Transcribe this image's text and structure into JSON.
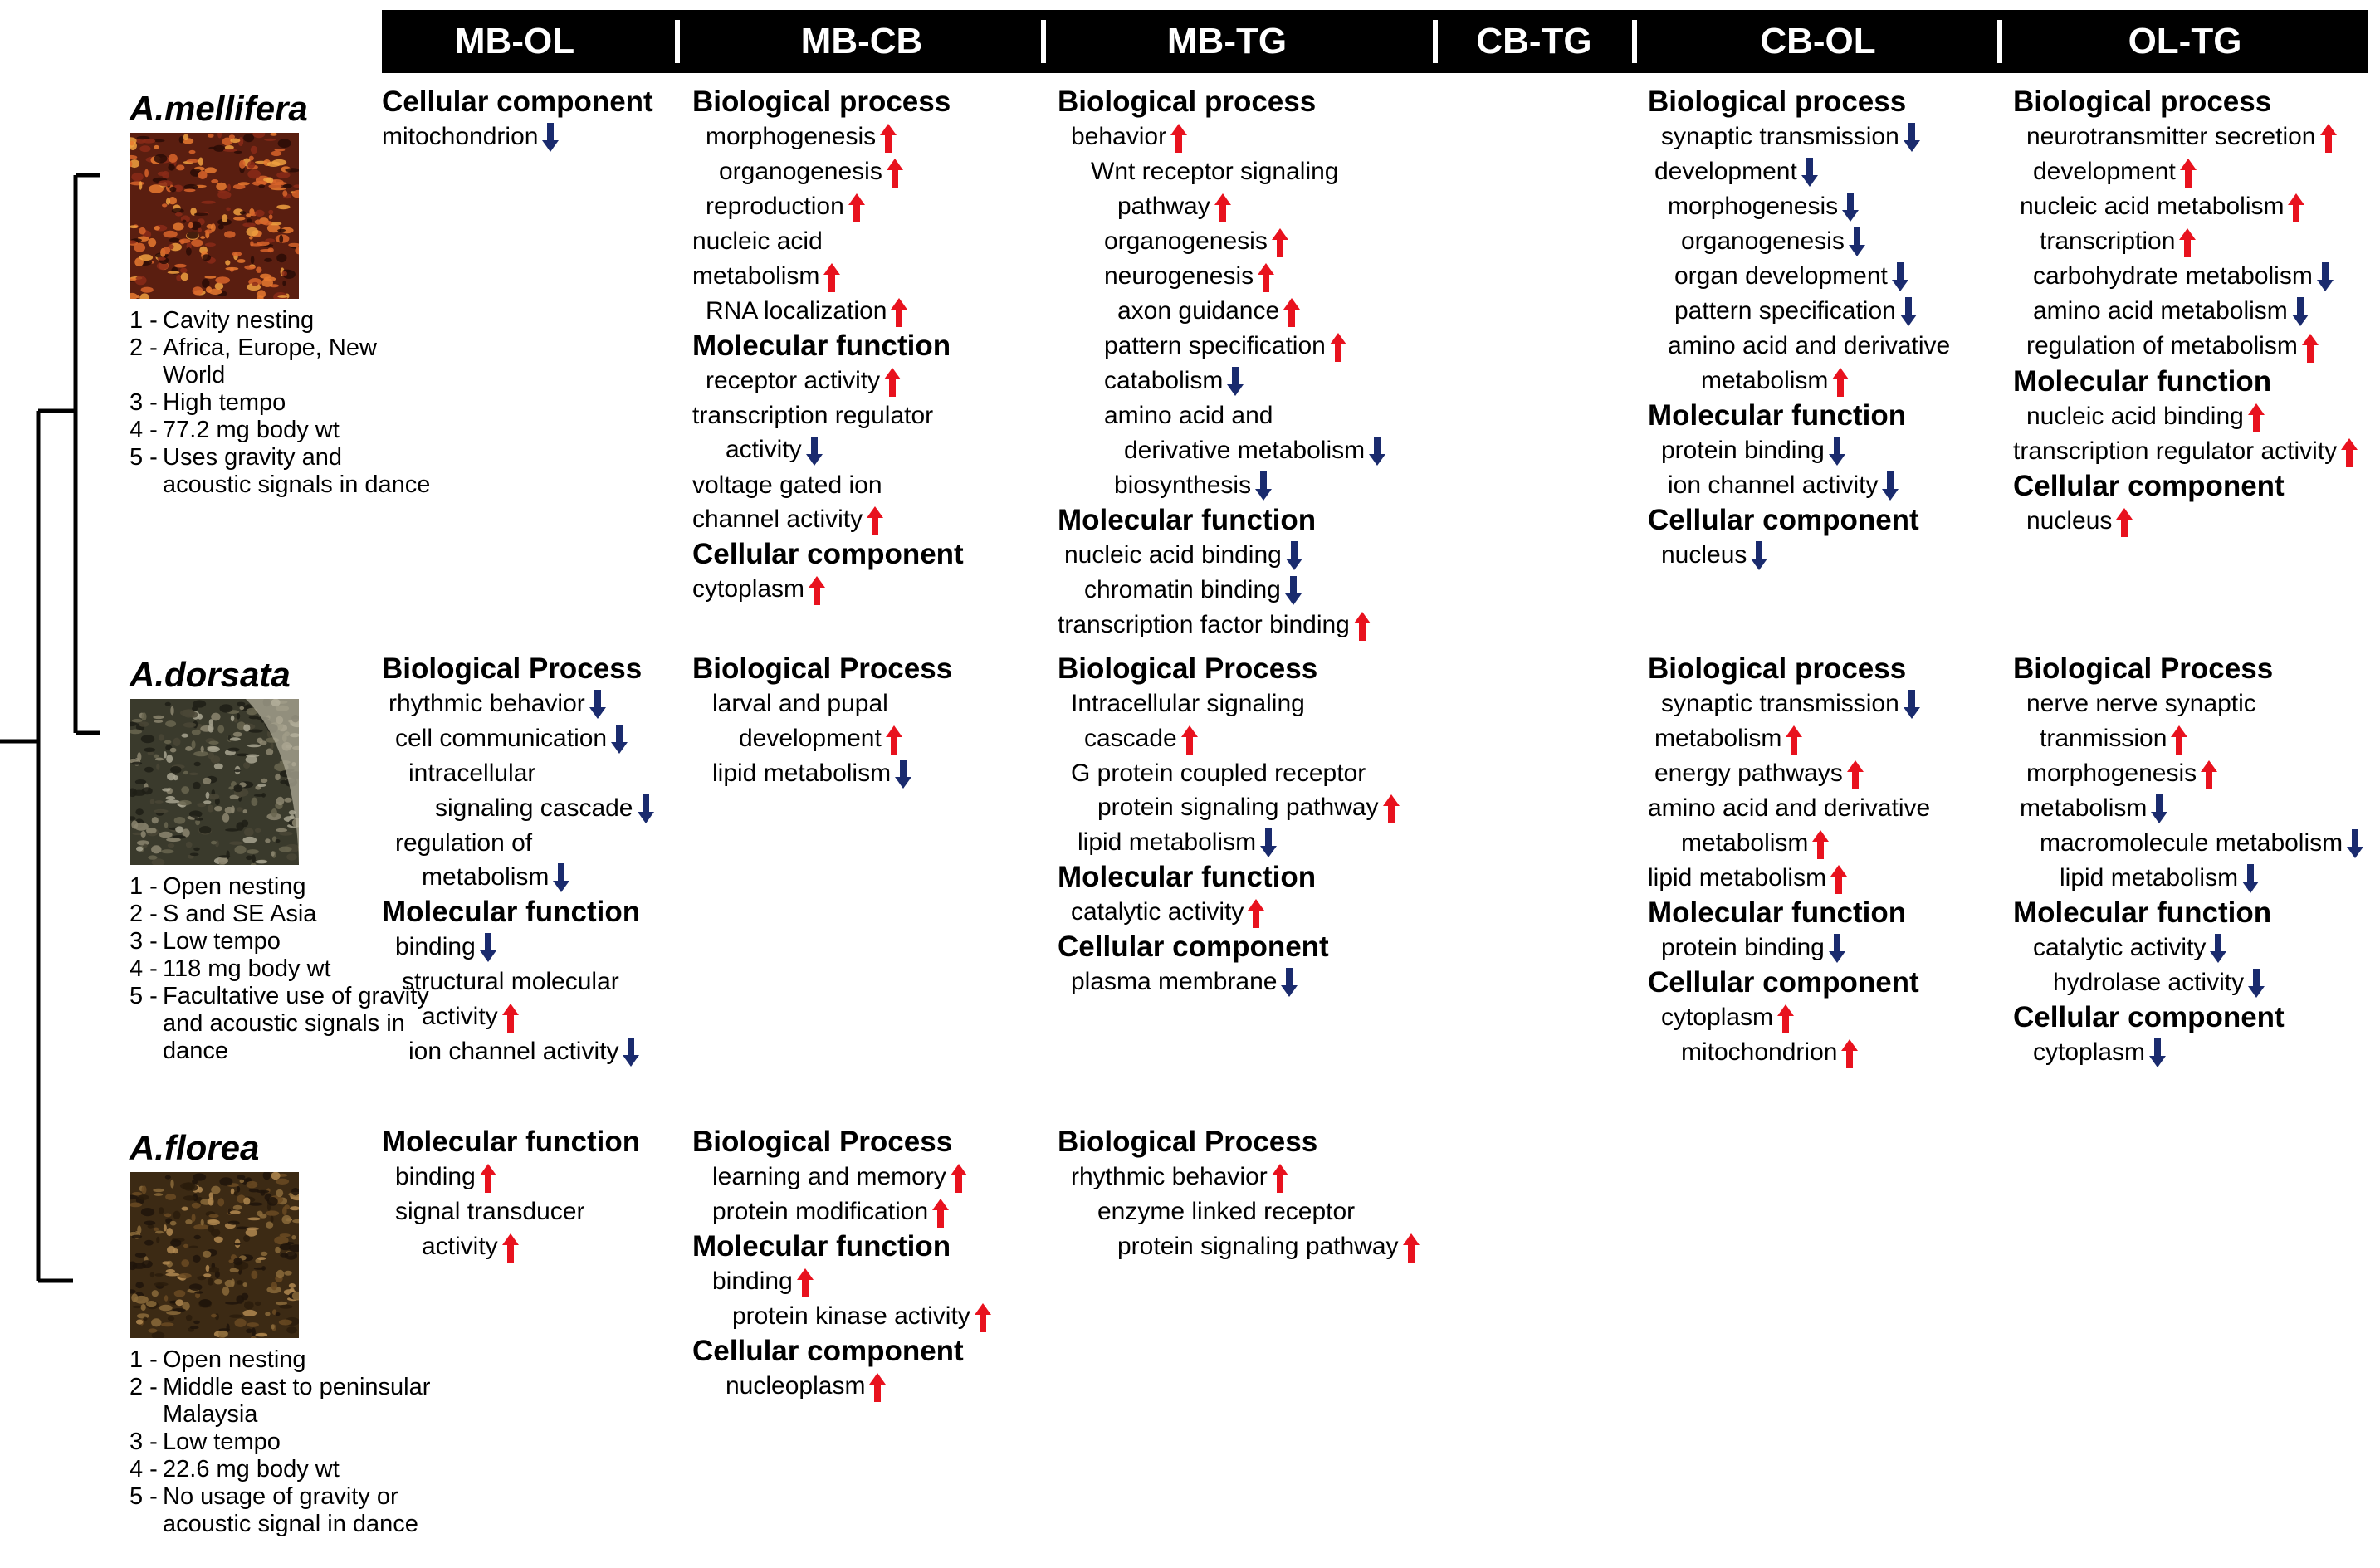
{
  "columns": [
    "MB-OL",
    "MB-CB",
    "MB-TG",
    "CB-TG",
    "CB-OL",
    "OL-TG"
  ],
  "colors": {
    "up": "#e8121e",
    "down": "#1a2b6e",
    "header_bg": "#000000"
  },
  "species": [
    {
      "name": "A.mellifera",
      "photo": "honeybee-swarm-photo",
      "traits": [
        {
          "num": "1 -",
          "text": "Cavity nesting"
        },
        {
          "num": "2 -",
          "text": "Africa, Europe, New World"
        },
        {
          "num": "3 -",
          "text": "High tempo"
        },
        {
          "num": "4 -",
          "text": "77.2 mg body wt"
        },
        {
          "num": "5 -",
          "text": "Uses gravity and acoustic signals in dance"
        }
      ]
    },
    {
      "name": "A.dorsata",
      "photo": "giant-honeybee-comb-photo",
      "traits": [
        {
          "num": "1 -",
          "text": "Open nesting"
        },
        {
          "num": "2 -",
          "text": "S and SE Asia"
        },
        {
          "num": "3 -",
          "text": "Low tempo"
        },
        {
          "num": "4 -",
          "text": "118 mg body wt"
        },
        {
          "num": "5 -",
          "text": "Facultative use of gravity and acoustic signals in dance"
        }
      ]
    },
    {
      "name": "A.florea",
      "photo": "dwarf-honeybee-nest-photo",
      "traits": [
        {
          "num": "1 -",
          "text": "Open nesting"
        },
        {
          "num": "2 -",
          "text": "Middle east to peninsular Malaysia"
        },
        {
          "num": "3 -",
          "text": "Low tempo"
        },
        {
          "num": "4 -",
          "text": "22.6 mg body wt"
        },
        {
          "num": "5 -",
          "text": "No usage of gravity or acoustic signal in dance"
        }
      ]
    }
  ],
  "cells": [
    [
      [
        {
          "s": "Cellular component"
        },
        {
          "t": "mitochondrion",
          "d": "down"
        }
      ],
      [
        {
          "s": "Biological process"
        },
        {
          "t": "morphogenesis",
          "d": "up"
        },
        {
          "t": "organogenesis",
          "d": "up"
        },
        {
          "t": "reproduction",
          "d": "up"
        },
        {
          "t": "nucleic acid"
        },
        {
          "t": "metabolism",
          "d": "up"
        },
        {
          "t": "RNA localization",
          "d": "up"
        },
        {
          "s": "Molecular function"
        },
        {
          "t": "receptor activity",
          "d": "up"
        },
        {
          "t": "transcription regulator"
        },
        {
          "t": "activity",
          "d": "down"
        },
        {
          "t": "voltage gated ion"
        },
        {
          "t": "channel activity",
          "d": "up"
        },
        {
          "s": "Cellular component"
        },
        {
          "t": "cytoplasm",
          "d": "up"
        }
      ],
      [
        {
          "s": "Biological process"
        },
        {
          "t": "behavior",
          "d": "up"
        },
        {
          "t": "Wnt receptor signaling"
        },
        {
          "t": "pathway",
          "d": "up"
        },
        {
          "t": "organogenesis",
          "d": "up"
        },
        {
          "t": "neurogenesis",
          "d": "up"
        },
        {
          "t": "axon guidance",
          "d": "up"
        },
        {
          "t": "pattern specification",
          "d": "up"
        },
        {
          "t": "catabolism",
          "d": "down"
        },
        {
          "t": "amino acid and"
        },
        {
          "t": "derivative metabolism",
          "d": "down"
        },
        {
          "t": "biosynthesis",
          "d": "down"
        },
        {
          "s": "Molecular function"
        },
        {
          "t": "nucleic acid binding",
          "d": "down"
        },
        {
          "t": "chromatin binding",
          "d": "down"
        },
        {
          "t": "transcription factor binding",
          "d": "up"
        }
      ],
      [],
      [
        {
          "s": "Biological process"
        },
        {
          "t": "synaptic transmission",
          "d": "down"
        },
        {
          "t": "development",
          "d": "down"
        },
        {
          "t": "morphogenesis",
          "d": "down"
        },
        {
          "t": "organogenesis",
          "d": "down"
        },
        {
          "t": "organ development",
          "d": "down"
        },
        {
          "t": "pattern specification",
          "d": "down"
        },
        {
          "t": "amino acid and derivative"
        },
        {
          "t": "metabolism",
          "d": "up"
        },
        {
          "s": "Molecular function"
        },
        {
          "t": "protein binding",
          "d": "down"
        },
        {
          "t": "ion channel activity",
          "d": "down"
        },
        {
          "s": "Cellular component"
        },
        {
          "t": "nucleus",
          "d": "down"
        }
      ],
      [
        {
          "s": "Biological process"
        },
        {
          "t": "neurotransmitter secretion",
          "d": "up"
        },
        {
          "t": "development",
          "d": "up"
        },
        {
          "t": "nucleic acid metabolism",
          "d": "up"
        },
        {
          "t": "transcription",
          "d": "up"
        },
        {
          "t": "carbohydrate metabolism",
          "d": "down"
        },
        {
          "t": "amino acid metabolism",
          "d": "down"
        },
        {
          "t": "regulation of metabolism",
          "d": "up"
        },
        {
          "s": "Molecular function"
        },
        {
          "t": "nucleic acid binding",
          "d": "up"
        },
        {
          "t": "transcription regulator activity",
          "d": "up"
        },
        {
          "s": "Cellular component"
        },
        {
          "t": "nucleus",
          "d": "up"
        }
      ]
    ],
    [
      [
        {
          "s": "Biological Process"
        },
        {
          "t": "rhythmic behavior",
          "d": "down"
        },
        {
          "t": "cell communication",
          "d": "down"
        },
        {
          "t": "intracellular"
        },
        {
          "t": "signaling cascade",
          "d": "down"
        },
        {
          "t": "regulation of"
        },
        {
          "t": "metabolism",
          "d": "down"
        },
        {
          "s": "Molecular function"
        },
        {
          "t": "binding",
          "d": "down"
        },
        {
          "t": "structural molecular"
        },
        {
          "t": "activity",
          "d": "up"
        },
        {
          "t": "ion channel activity",
          "d": "down"
        }
      ],
      [
        {
          "s": "Biological Process"
        },
        {
          "t": "larval and pupal"
        },
        {
          "t": "development",
          "d": "up"
        },
        {
          "t": "lipid metabolism",
          "d": "down"
        }
      ],
      [
        {
          "s": "Biological Process"
        },
        {
          "t": "Intracellular signaling"
        },
        {
          "t": "cascade",
          "d": "up"
        },
        {
          "t": "G protein coupled receptor"
        },
        {
          "t": "protein signaling pathway",
          "d": "up"
        },
        {
          "t": "lipid metabolism",
          "d": "down"
        },
        {
          "s": "Molecular function"
        },
        {
          "t": "catalytic activity",
          "d": "up"
        },
        {
          "s": "Cellular component"
        },
        {
          "t": "plasma membrane",
          "d": "down"
        }
      ],
      [],
      [
        {
          "s": "Biological process"
        },
        {
          "t": "synaptic transmission",
          "d": "down"
        },
        {
          "t": "metabolism",
          "d": "up"
        },
        {
          "t": "energy pathways",
          "d": "up"
        },
        {
          "t": "amino acid and derivative"
        },
        {
          "t": "metabolism",
          "d": "up"
        },
        {
          "t": "lipid metabolism",
          "d": "up"
        },
        {
          "s": "Molecular function"
        },
        {
          "t": "protein binding",
          "d": "down"
        },
        {
          "s": "Cellular component"
        },
        {
          "t": "cytoplasm",
          "d": "up"
        },
        {
          "t": "mitochondrion",
          "d": "up"
        }
      ],
      [
        {
          "s": "Biological Process"
        },
        {
          "t": "nerve nerve synaptic"
        },
        {
          "t": "tranmission",
          "d": "up"
        },
        {
          "t": "morphogenesis",
          "d": "up"
        },
        {
          "t": "metabolism",
          "d": "down"
        },
        {
          "t": "macromolecule metabolism",
          "d": "down"
        },
        {
          "t": "lipid metabolism",
          "d": "down"
        },
        {
          "s": "Molecular function"
        },
        {
          "t": "catalytic activity",
          "d": "down"
        },
        {
          "t": "hydrolase activity",
          "d": "down"
        },
        {
          "s": "Cellular component"
        },
        {
          "t": "cytoplasm",
          "d": "down"
        }
      ]
    ],
    [
      [
        {
          "s": "Molecular function"
        },
        {
          "t": "binding",
          "d": "up"
        },
        {
          "t": "signal transducer"
        },
        {
          "t": "activity",
          "d": "up"
        }
      ],
      [
        {
          "s": "Biological Process"
        },
        {
          "t": "learning and memory",
          "d": "up"
        },
        {
          "t": "protein modification",
          "d": "up"
        },
        {
          "s": "Molecular function"
        },
        {
          "t": "binding",
          "d": "up"
        },
        {
          "t": "protein kinase activity",
          "d": "up"
        },
        {
          "s": "Cellular component"
        },
        {
          "t": "nucleoplasm",
          "d": "up"
        }
      ],
      [
        {
          "s": "Biological Process"
        },
        {
          "t": "rhythmic behavior",
          "d": "up"
        },
        {
          "t": "enzyme linked receptor"
        },
        {
          "t": "protein signaling pathway",
          "d": "up"
        }
      ],
      [],
      [],
      []
    ]
  ]
}
